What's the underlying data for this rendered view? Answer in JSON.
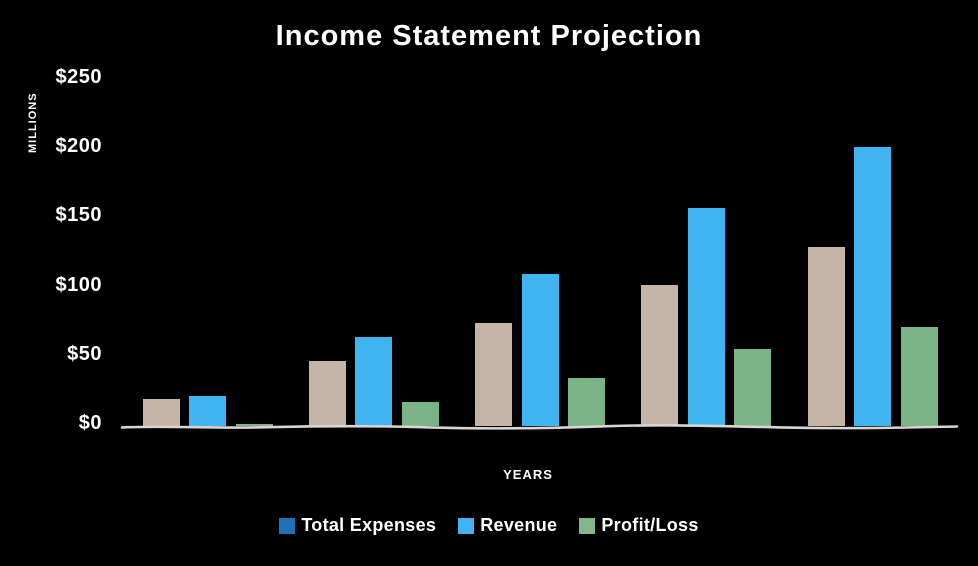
{
  "title": "Income Statement Projection",
  "y_axis": {
    "title": "MILLIONS"
  },
  "x_axis": {
    "title": "YEARS"
  },
  "legend": {
    "items": [
      {
        "label": "Total Expenses",
        "swatch_color": "#1e72b8"
      },
      {
        "label": "Revenue",
        "swatch_color": "#3fb4f0"
      },
      {
        "label": "Profit/Loss",
        "swatch_color": "#84b58d"
      }
    ]
  },
  "colors": {
    "background": "#000000",
    "text": "#ffffff",
    "axis_line": "#d8d5d2",
    "expenses_bar": "#c4b5a7",
    "revenue_bar": "#3fb4f0",
    "profit_bar": "#7ab385"
  },
  "chart_data": {
    "type": "bar",
    "title": "Income Statement Projection",
    "xlabel": "YEARS",
    "ylabel": "MILLIONS",
    "categories": [
      "",
      "",
      "",
      "",
      ""
    ],
    "series": [
      {
        "name": "Total Expenses",
        "color": "#c4b5a7",
        "values": [
          20,
          47,
          75,
          102,
          130
        ]
      },
      {
        "name": "Revenue",
        "color": "#3fb4f0",
        "values": [
          22,
          65,
          110,
          158,
          202
        ]
      },
      {
        "name": "Profit/Loss",
        "color": "#7ab385",
        "values": [
          2,
          18,
          35,
          56,
          72
        ]
      }
    ],
    "ylim": [
      0,
      250
    ],
    "ytick_interval": 50,
    "yticks": [
      {
        "value": 0,
        "label": "$0"
      },
      {
        "value": 50,
        "label": "$50"
      },
      {
        "value": 100,
        "label": "$100"
      },
      {
        "value": 150,
        "label": "$150"
      },
      {
        "value": 200,
        "label": "$200"
      },
      {
        "value": 250,
        "label": "$250"
      }
    ],
    "grid": false,
    "x_category_labels_visible": false,
    "legend_position": "bottom"
  }
}
